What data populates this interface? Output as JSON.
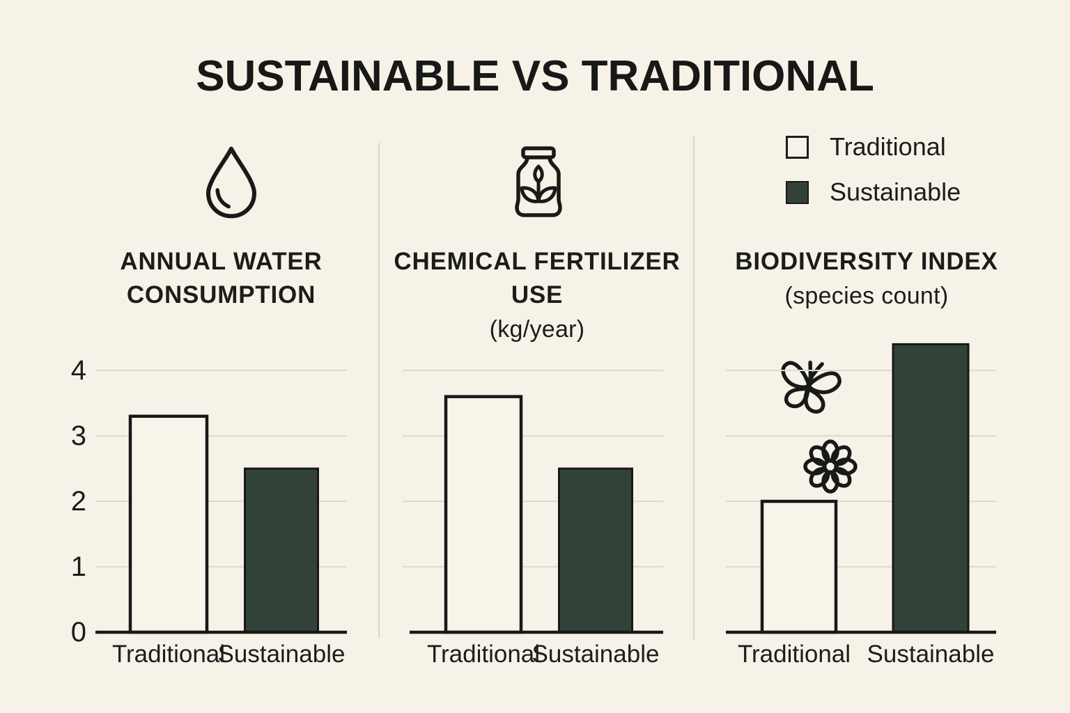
{
  "title": "SUSTAINABLE VS TRADITIONAL",
  "colors": {
    "background": "#f7f2e8",
    "ink": "#171817",
    "bar_traditional_fill": "#f8f4ea",
    "bar_sustainable_fill": "#334238",
    "gridline": "#ded9cb",
    "divider": "#dcd7c9"
  },
  "legend": {
    "position": "top-right",
    "items": [
      {
        "label": "Traditional",
        "swatch": "outline",
        "swatch_color": "#f8f4ea"
      },
      {
        "label": "Sustainable",
        "swatch": "filled",
        "swatch_color": "#334238"
      }
    ]
  },
  "chart_data": [
    {
      "type": "bar",
      "title": "ANNUAL WATER CONSUMPTION",
      "title_lines": [
        "ANNUAL WATER",
        "CONSUMPTION"
      ],
      "subtitle": "",
      "icons": [
        "water-drop-icon"
      ],
      "categories": [
        "Traditional",
        "Sustainable"
      ],
      "values": [
        3.3,
        2.5
      ],
      "xlabel": "",
      "ylabel": "",
      "ylim": [
        0,
        4
      ],
      "yticks": [
        0,
        1,
        2,
        3,
        4
      ],
      "show_ytick_labels": true,
      "grid": true
    },
    {
      "type": "bar",
      "title": "CHEMICAL FERTILIZER USE",
      "title_lines": [
        "CHEMICAL FERTILIZER",
        "USE"
      ],
      "subtitle": "(kg/year)",
      "icons": [
        "fertilizer-bag-icon"
      ],
      "categories": [
        "Traditional",
        "Sustainable"
      ],
      "values": [
        3.6,
        2.5
      ],
      "xlabel": "",
      "ylabel": "",
      "ylim": [
        0,
        4
      ],
      "yticks": [
        0,
        1,
        2,
        3,
        4
      ],
      "show_ytick_labels": false,
      "grid": true
    },
    {
      "type": "bar",
      "title": "BIODIVERSITY INDEX",
      "title_lines": [
        "BIODIVERSITY INDEX"
      ],
      "subtitle": "(species count)",
      "icons": [
        "butterfly-icon",
        "flower-icon"
      ],
      "categories": [
        "Traditional",
        "Sustainable"
      ],
      "values": [
        2.0,
        4.4
      ],
      "xlabel": "",
      "ylabel": "",
      "ylim": [
        0,
        4
      ],
      "yticks": [
        0,
        1,
        2,
        3,
        4
      ],
      "show_ytick_labels": false,
      "grid": true
    }
  ]
}
